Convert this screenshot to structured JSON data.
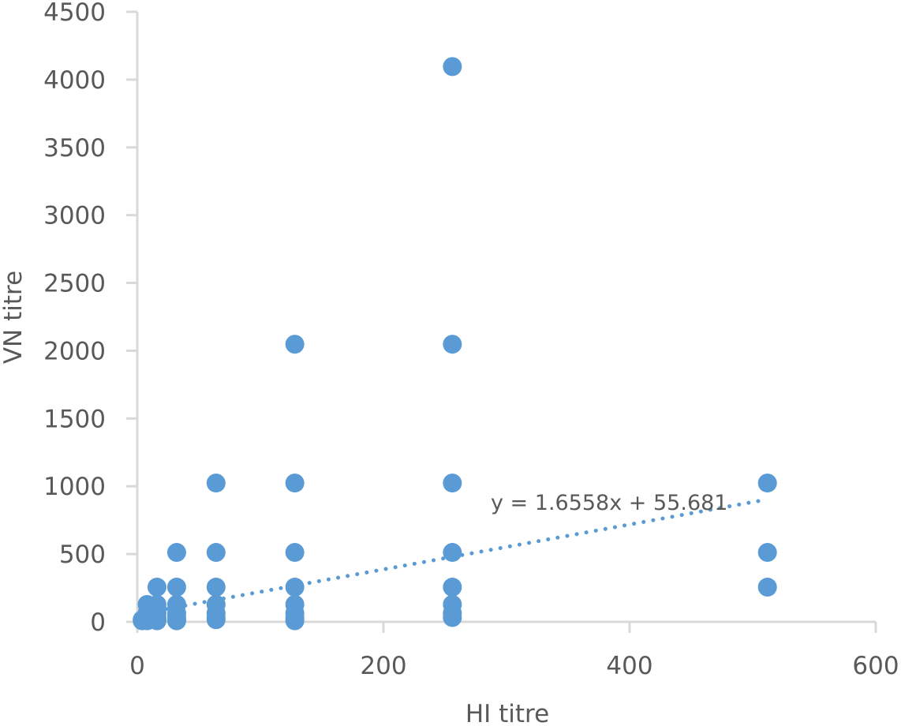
{
  "chart_data": {
    "type": "scatter",
    "title": "",
    "xlabel": "HI titre",
    "ylabel": "VN titre",
    "xlim": [
      0,
      600
    ],
    "ylim": [
      0,
      4500
    ],
    "xticks": [
      0,
      200,
      400,
      600
    ],
    "yticks": [
      0,
      500,
      1000,
      1500,
      2000,
      2500,
      3000,
      3500,
      4000,
      4500
    ],
    "grid": false,
    "legend": null,
    "marker_color": "#5B9BD5",
    "series": [
      {
        "name": "VN vs HI",
        "points": [
          [
            4,
            8
          ],
          [
            4,
            16
          ],
          [
            8,
            8
          ],
          [
            8,
            16
          ],
          [
            8,
            32
          ],
          [
            8,
            64
          ],
          [
            8,
            128
          ],
          [
            16,
            8
          ],
          [
            16,
            16
          ],
          [
            16,
            32
          ],
          [
            16,
            64
          ],
          [
            16,
            128
          ],
          [
            16,
            256
          ],
          [
            32,
            8
          ],
          [
            32,
            16
          ],
          [
            32,
            32
          ],
          [
            32,
            64
          ],
          [
            32,
            128
          ],
          [
            32,
            256
          ],
          [
            32,
            512
          ],
          [
            64,
            16
          ],
          [
            64,
            32
          ],
          [
            64,
            64
          ],
          [
            64,
            128
          ],
          [
            64,
            256
          ],
          [
            64,
            512
          ],
          [
            64,
            1024
          ],
          [
            128,
            8
          ],
          [
            128,
            32
          ],
          [
            128,
            64
          ],
          [
            128,
            128
          ],
          [
            128,
            256
          ],
          [
            128,
            512
          ],
          [
            128,
            1024
          ],
          [
            128,
            2048
          ],
          [
            256,
            32
          ],
          [
            256,
            64
          ],
          [
            256,
            128
          ],
          [
            256,
            256
          ],
          [
            256,
            512
          ],
          [
            256,
            1024
          ],
          [
            256,
            2048
          ],
          [
            256,
            4096
          ],
          [
            512,
            256
          ],
          [
            512,
            512
          ],
          [
            512,
            1024
          ]
        ]
      }
    ],
    "trendline": {
      "type": "linear",
      "style": "dotted",
      "slope": 1.6558,
      "intercept": 55.681,
      "x_range": [
        8,
        512
      ],
      "equation_label": "y = 1.6558x + 55.681"
    }
  },
  "axes": {
    "x_title": "HI titre",
    "y_title": "VN titre",
    "x_tick_labels": [
      "0",
      "200",
      "400",
      "600"
    ],
    "y_tick_labels": [
      "0",
      "500",
      "1000",
      "1500",
      "2000",
      "2500",
      "3000",
      "3500",
      "4000",
      "4500"
    ]
  },
  "trendline_label": "y = 1.6558x + 55.681"
}
